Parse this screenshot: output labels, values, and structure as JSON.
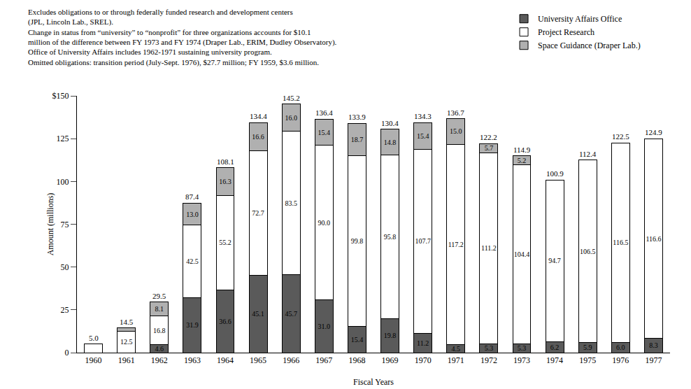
{
  "chart_data": {
    "type": "bar",
    "stacked": true,
    "data_labels": true,
    "grid": false,
    "legend": "top right",
    "notes": [
      "Excludes obligations to or through federally funded research and development centers",
      "(JPL, Lincoln Lab., SREL).",
      "Change in status from “university” to “nonprofit” for three organizations accounts for $10.1",
      "million of the difference between FY 1973 and FY 1974 (Draper Lab., ERIM, Dudley Observatory).",
      "Office of University Affairs includes 1962-1971 sustaining university program.",
      "Omitted obligations: transition period (July-Sept. 1976), $27.7 million; FY 1959, $3.6 million."
    ],
    "x_label": "Fiscal Years",
    "y_label": "Amount (millions)",
    "categories": [
      "1960",
      "1961",
      "1962",
      "1963",
      "1964",
      "1965",
      "1966",
      "1967",
      "1968",
      "1969",
      "1970",
      "1971",
      "1972",
      "1973",
      "1974",
      "1975",
      "1976",
      "1977"
    ],
    "ylim": [
      0,
      150
    ],
    "yticks": [
      0,
      25,
      50,
      75,
      100,
      125,
      {
        "value": 150,
        "label": "$150"
      }
    ],
    "series": [
      {
        "name": "University Affairs Office",
        "color": "#5a5a5a",
        "values": [
          null,
          null,
          4.6,
          31.9,
          36.6,
          45.1,
          45.7,
          31.0,
          15.4,
          19.8,
          11.2,
          4.5,
          5.3,
          5.3,
          6.2,
          5.9,
          6.0,
          8.3
        ],
        "value_labels": [
          null,
          null,
          "4.6",
          "31.9",
          "36.6",
          "45.1",
          "45.7",
          "31.0",
          "15.4",
          "19.8",
          "11.2",
          "4.5",
          "5.3",
          "5.3",
          "6.2",
          "5.9",
          "6.0",
          "8.3"
        ]
      },
      {
        "name": "Project Research",
        "color": "#ffffff",
        "values": [
          5.0,
          12.5,
          16.8,
          42.5,
          55.2,
          72.7,
          83.5,
          90.0,
          99.8,
          95.8,
          107.7,
          117.2,
          111.2,
          104.4,
          94.7,
          106.5,
          116.5,
          116.6
        ],
        "value_labels": [
          null,
          "12.5",
          "16.8",
          "42.5",
          "55.2",
          "72.7",
          "83.5",
          "90.0",
          "99.8",
          "95.8",
          "107.7",
          "117.2",
          "111.2",
          "104.4",
          "94.7",
          "106.5",
          "116.5",
          "116.6"
        ]
      },
      {
        "name": "Space Guidance (Draper Lab.)",
        "color": "#b0b0b0",
        "values": [
          null,
          2.0,
          8.1,
          13.0,
          16.3,
          16.6,
          16.0,
          15.4,
          18.7,
          14.8,
          15.4,
          15.0,
          5.7,
          5.2,
          null,
          null,
          null,
          null
        ],
        "value_labels": [
          null,
          null,
          "8.1",
          "13.0",
          "16.3",
          "16.6",
          "16.0",
          "15.4",
          "18.7",
          "14.8",
          "15.4",
          "15.0",
          "5.7",
          "5.2",
          null,
          null,
          null,
          null
        ]
      }
    ],
    "totals": [
      5.0,
      14.5,
      29.5,
      87.4,
      108.1,
      134.4,
      145.2,
      136.4,
      133.9,
      130.4,
      134.3,
      136.7,
      122.2,
      114.9,
      100.9,
      112.4,
      122.5,
      124.9
    ],
    "total_labels": [
      "5.0",
      "14.5",
      "29.5",
      "87.4",
      "108.1",
      "134.4",
      "145.2",
      "136.4",
      "133.9",
      "130.4",
      "134.3",
      "136.7",
      "122.2",
      "114.9",
      "100.9",
      "112.4",
      "122.5",
      "124.9"
    ]
  }
}
